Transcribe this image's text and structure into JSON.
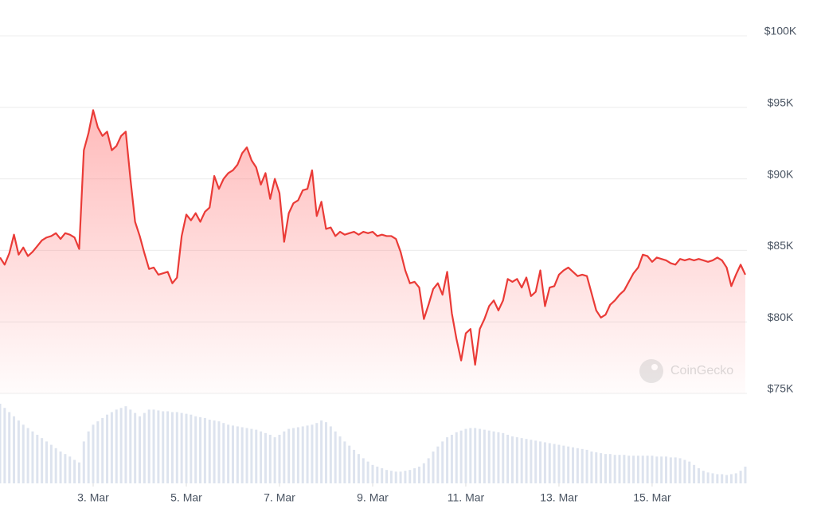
{
  "chart_data": {
    "type": "line",
    "x": [
      1,
      1.1,
      1.2,
      1.3,
      1.4,
      1.5,
      1.6,
      1.7,
      1.8,
      1.9,
      2,
      2.1,
      2.2,
      2.3,
      2.4,
      2.5,
      2.6,
      2.7,
      2.8,
      2.9,
      3,
      3.1,
      3.2,
      3.3,
      3.4,
      3.5,
      3.6,
      3.7,
      3.8,
      3.9,
      4,
      4.1,
      4.2,
      4.3,
      4.4,
      4.5,
      4.6,
      4.7,
      4.8,
      4.9,
      5,
      5.1,
      5.2,
      5.3,
      5.4,
      5.5,
      5.6,
      5.7,
      5.8,
      5.9,
      6,
      6.1,
      6.2,
      6.3,
      6.4,
      6.5,
      6.6,
      6.7,
      6.8,
      6.9,
      7,
      7.1,
      7.2,
      7.3,
      7.4,
      7.5,
      7.6,
      7.7,
      7.8,
      7.9,
      8,
      8.1,
      8.2,
      8.3,
      8.4,
      8.5,
      8.6,
      8.7,
      8.8,
      8.9,
      9,
      9.1,
      9.2,
      9.3,
      9.4,
      9.5,
      9.6,
      9.7,
      9.8,
      9.9,
      10,
      10.1,
      10.2,
      10.3,
      10.4,
      10.5,
      10.6,
      10.7,
      10.8,
      10.9,
      11,
      11.1,
      11.2,
      11.3,
      11.4,
      11.5,
      11.6,
      11.7,
      11.8,
      11.9,
      12,
      12.1,
      12.2,
      12.3,
      12.4,
      12.5,
      12.6,
      12.7,
      12.8,
      12.9,
      13,
      13.1,
      13.2,
      13.3,
      13.4,
      13.5,
      13.6,
      13.7,
      13.8,
      13.9,
      14,
      14.1,
      14.2,
      14.3,
      14.4,
      14.5,
      14.6,
      14.7,
      14.8,
      14.9,
      15,
      15.1,
      15.2,
      15.3,
      15.4,
      15.5,
      15.6,
      15.7,
      15.8,
      15.9,
      16,
      16.1,
      16.2,
      16.3,
      16.4,
      16.5,
      16.6,
      16.7,
      16.8,
      16.9,
      17
    ],
    "values": [
      84500,
      84000,
      84800,
      86100,
      84700,
      85200,
      84600,
      84900,
      85300,
      85700,
      85900,
      86000,
      86200,
      85800,
      86200,
      86100,
      85900,
      85100,
      92000,
      93200,
      94800,
      93600,
      93000,
      93300,
      92000,
      92300,
      93000,
      93300,
      90000,
      87000,
      86000,
      84800,
      83700,
      83800,
      83300,
      83400,
      83500,
      82700,
      83100,
      86000,
      87500,
      87100,
      87600,
      87000,
      87700,
      88000,
      90200,
      89300,
      90000,
      90400,
      90600,
      91000,
      91800,
      92200,
      91300,
      90800,
      89600,
      90400,
      88600,
      90000,
      89000,
      85600,
      87600,
      88300,
      88500,
      89200,
      89300,
      90600,
      87400,
      88400,
      86500,
      86600,
      86000,
      86300,
      86100,
      86200,
      86300,
      86100,
      86300,
      86200,
      86300,
      86000,
      86100,
      86000,
      86000,
      85800,
      84900,
      83600,
      82700,
      82800,
      82400,
      80200,
      81200,
      82300,
      82700,
      81900,
      83500,
      80600,
      78800,
      77300,
      79200,
      79500,
      77000,
      79500,
      80200,
      81100,
      81500,
      80800,
      81500,
      83000,
      82800,
      83000,
      82400,
      83100,
      81800,
      82100,
      83600,
      81100,
      82400,
      82500,
      83300,
      83600,
      83800,
      83500,
      83200,
      83300,
      83200,
      82000,
      80800,
      80300,
      80500,
      81200,
      81500,
      81900,
      82200,
      82800,
      83400,
      83800,
      84700,
      84600,
      84200,
      84500,
      84400,
      84300,
      84100,
      84000,
      84400,
      84300,
      84400,
      84300,
      84400,
      84300,
      84200,
      84300,
      84500,
      84300,
      83800,
      82500,
      83300,
      84000,
      83300
    ],
    "volume": [
      95,
      90,
      85,
      80,
      75,
      70,
      66,
      62,
      58,
      54,
      50,
      46,
      42,
      38,
      35,
      32,
      28,
      25,
      50,
      62,
      70,
      74,
      78,
      82,
      85,
      88,
      90,
      92,
      88,
      84,
      80,
      84,
      88,
      88,
      87,
      86,
      86,
      85,
      85,
      84,
      83,
      82,
      80,
      79,
      78,
      76,
      75,
      74,
      72,
      70,
      69,
      68,
      67,
      66,
      65,
      64,
      62,
      60,
      58,
      55,
      58,
      62,
      65,
      66,
      67,
      68,
      69,
      70,
      72,
      75,
      73,
      68,
      62,
      56,
      50,
      45,
      40,
      35,
      30,
      26,
      22,
      20,
      18,
      16,
      15,
      14,
      14,
      15,
      16,
      18,
      20,
      24,
      30,
      38,
      44,
      50,
      55,
      58,
      61,
      63,
      65,
      66,
      66,
      65,
      64,
      63,
      62,
      61,
      60,
      58,
      56,
      55,
      54,
      53,
      52,
      51,
      50,
      49,
      48,
      47,
      46,
      45,
      44,
      43,
      42,
      41,
      40,
      38,
      37,
      36,
      35,
      35,
      34,
      34,
      34,
      33,
      33,
      33,
      33,
      33,
      33,
      32,
      32,
      32,
      31,
      31,
      30,
      28,
      26,
      22,
      18,
      15,
      13,
      12,
      11,
      11,
      10,
      11,
      12,
      15,
      20
    ],
    "color": "#ea3b37",
    "volume_color": "#dde3ee",
    "xlim": [
      1,
      17.035
    ],
    "xticks": [
      {
        "value": 3,
        "label": "3. Mar"
      },
      {
        "value": 5,
        "label": "5. Mar"
      },
      {
        "value": 7,
        "label": "7. Mar"
      },
      {
        "value": 9,
        "label": "9. Mar"
      },
      {
        "value": 11,
        "label": "11. Mar"
      },
      {
        "value": 13,
        "label": "13. Mar"
      },
      {
        "value": 15,
        "label": "15. Mar"
      }
    ],
    "ylim": [
      75000,
      100000
    ],
    "yticks": [
      {
        "value": 75000,
        "label": "$75K"
      },
      {
        "value": 80000,
        "label": "$80K"
      },
      {
        "value": 85000,
        "label": "$85K"
      },
      {
        "value": 90000,
        "label": "$90K"
      },
      {
        "value": 95000,
        "label": "$95K"
      },
      {
        "value": 100000,
        "label": "$100K"
      }
    ],
    "grid": true,
    "watermark": "CoinGecko"
  }
}
